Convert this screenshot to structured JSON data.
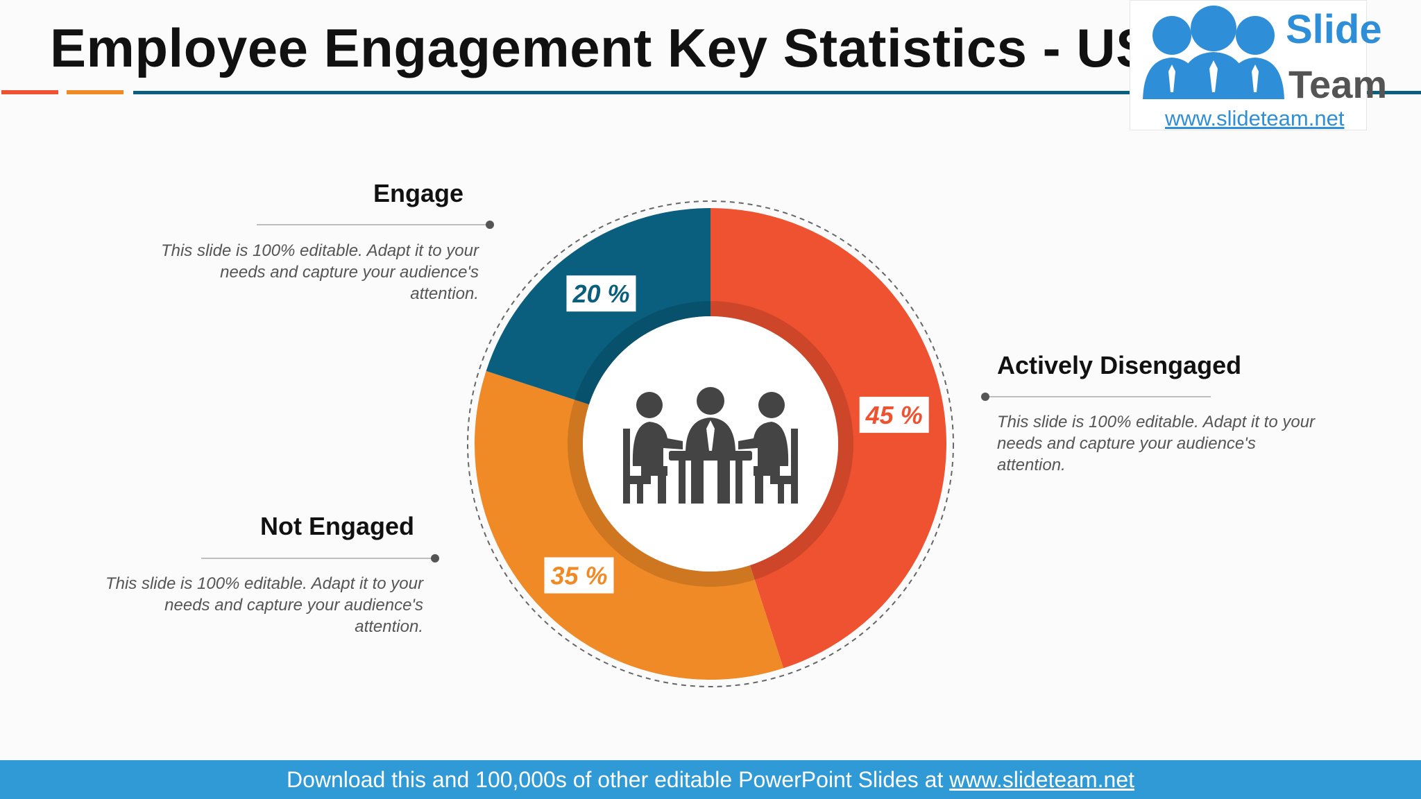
{
  "header": {
    "title": "Employee Engagement Key Statistics - US"
  },
  "logo": {
    "word1": "Slide",
    "word2": "Team",
    "url": "www.slideteam.net"
  },
  "colors": {
    "red": "#ef5230",
    "orange": "#f08a26",
    "blue": "#0a5f7f",
    "footer": "#2f9ad6",
    "logo_blue": "#2e8fd8",
    "logo_gray": "#545454",
    "icon_gray": "#444444"
  },
  "labels": {
    "engage": {
      "title": "Engage",
      "desc": "This slide is 100% editable. Adapt it to your needs and capture your audience's attention."
    },
    "not_engaged": {
      "title": "Not Engaged",
      "desc": "This slide is 100% editable. Adapt it to your needs and capture your audience's attention."
    },
    "actively_disengaged": {
      "title": "Actively Disengaged",
      "desc": "This slide is 100% editable. Adapt it to your needs and capture your audience's attention."
    }
  },
  "chart_data": {
    "type": "pie",
    "variant": "donut",
    "title": "Employee Engagement Key Statistics - US",
    "series": [
      {
        "name": "Actively Disengaged",
        "value": 45,
        "label": "45 %",
        "color": "#ef5230"
      },
      {
        "name": "Not Engaged",
        "value": 35,
        "label": "35 %",
        "color": "#f08a26"
      },
      {
        "name": "Engage",
        "value": 20,
        "label": "20 %",
        "color": "#0a5f7f"
      }
    ],
    "center_icon": "business-meeting-icon"
  },
  "footer": {
    "text": "Download this and 100,000s of other editable PowerPoint Slides at",
    "link": "www.slideteam.net"
  }
}
